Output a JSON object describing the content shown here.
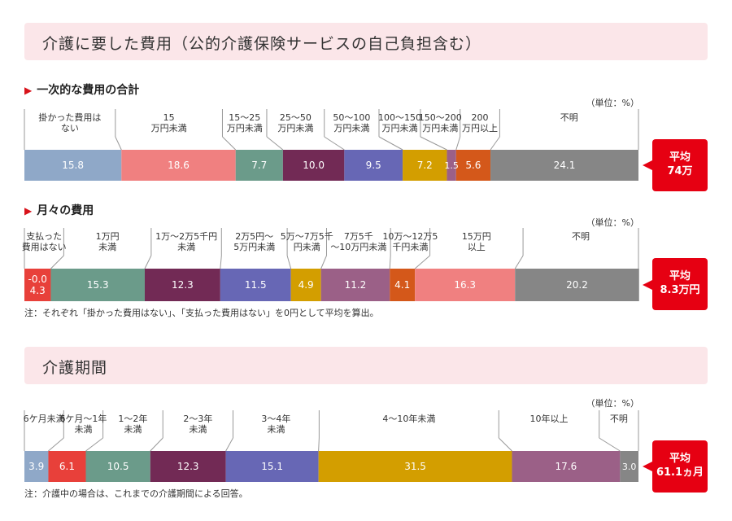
{
  "title": "介護に要した費用（公的介護保険サービスの自己負担含む）",
  "section2_title": "介護期間",
  "charts_meta": [
    {
      "subtitle": "一次的な費用の合計",
      "unit": "（単位：%）",
      "note": "",
      "avg_label": "平均",
      "avg_value": "74万"
    },
    {
      "subtitle": "月々の費用",
      "unit": "（単位：%）",
      "note": "注：それぞれ「掛かった費用はない」、「支払った費用はない」を0円として平均を算出。",
      "avg_label": "平均",
      "avg_value": "8.3万円"
    },
    {
      "subtitle": "",
      "unit": "（単位：%）",
      "note": "注：介護中の場合は、これまでの介護期間による回答。",
      "avg_label": "平均",
      "avg_value": "61.1ヵ月"
    }
  ],
  "chart_data": [
    {
      "type": "bar",
      "title": "一次的な費用の合計",
      "categories": [
        "掛かった費用は\nない",
        "15\n万円未満",
        "15〜25\n万円未満",
        "25〜50\n万円未満",
        "50〜100\n万円未満",
        "100〜150\n万円未満",
        "150〜200\n万円未満",
        "200\n万円以上",
        "不明"
      ],
      "values": [
        15.8,
        18.6,
        7.7,
        10.0,
        9.5,
        7.2,
        1.5,
        5.6,
        24.1
      ],
      "value_labels": [
        "15.8",
        "18.6",
        "7.7",
        "10.0",
        "9.5",
        "7.2",
        "1.5",
        "5.6",
        "24.1"
      ],
      "colors": [
        "#8fa8c8",
        "#f08080",
        "#6b9b8a",
        "#722a55",
        "#6767b5",
        "#d39e00",
        "#9b6087",
        "#d4581a",
        "#868686"
      ],
      "xlim": [
        0,
        100
      ]
    },
    {
      "type": "bar",
      "title": "月々の費用",
      "categories": [
        "支払った\n費用はない",
        "1万円\n未満",
        "1万〜2万5千円\n未満",
        "2万5円〜\n5万円未満",
        "5万〜7万5千\n円未満",
        "7万5千\n〜10万円未満",
        "10万〜12万5\n千円未満",
        "15万円\n以上",
        "不明"
      ],
      "values": [
        4.3,
        15.3,
        12.3,
        11.5,
        4.9,
        11.2,
        4.1,
        16.3,
        20.2
      ],
      "value_labels": [
        "-0.0\n4.3",
        "15.3",
        "12.3",
        "11.5",
        "4.9",
        "11.2",
        "4.1",
        "16.3",
        "20.2"
      ],
      "colors": [
        "#e8403a",
        "#6b9b8a",
        "#722a55",
        "#6767b5",
        "#d39e00",
        "#9b6087",
        "#d4581a",
        "#f08080",
        "#868686"
      ],
      "xlim": [
        0,
        100
      ]
    },
    {
      "type": "bar",
      "title": "介護期間",
      "categories": [
        "6ケ月未満",
        "6ケ月〜1年\n未満",
        "1〜2年\n未満",
        "2〜3年\n未満",
        "3〜4年\n未満",
        "4〜10年未満",
        "10年以上",
        "不明"
      ],
      "values": [
        3.9,
        6.1,
        10.5,
        12.3,
        15.1,
        31.5,
        17.6,
        3.0
      ],
      "value_labels": [
        "3.9",
        "6.1",
        "10.5",
        "12.3",
        "15.1",
        "31.5",
        "17.6",
        "3.0"
      ],
      "colors": [
        "#8fa8c8",
        "#e8403a",
        "#6b9b8a",
        "#722a55",
        "#6767b5",
        "#d39e00",
        "#9b6087",
        "#868686"
      ],
      "xlim": [
        0,
        100
      ]
    }
  ]
}
